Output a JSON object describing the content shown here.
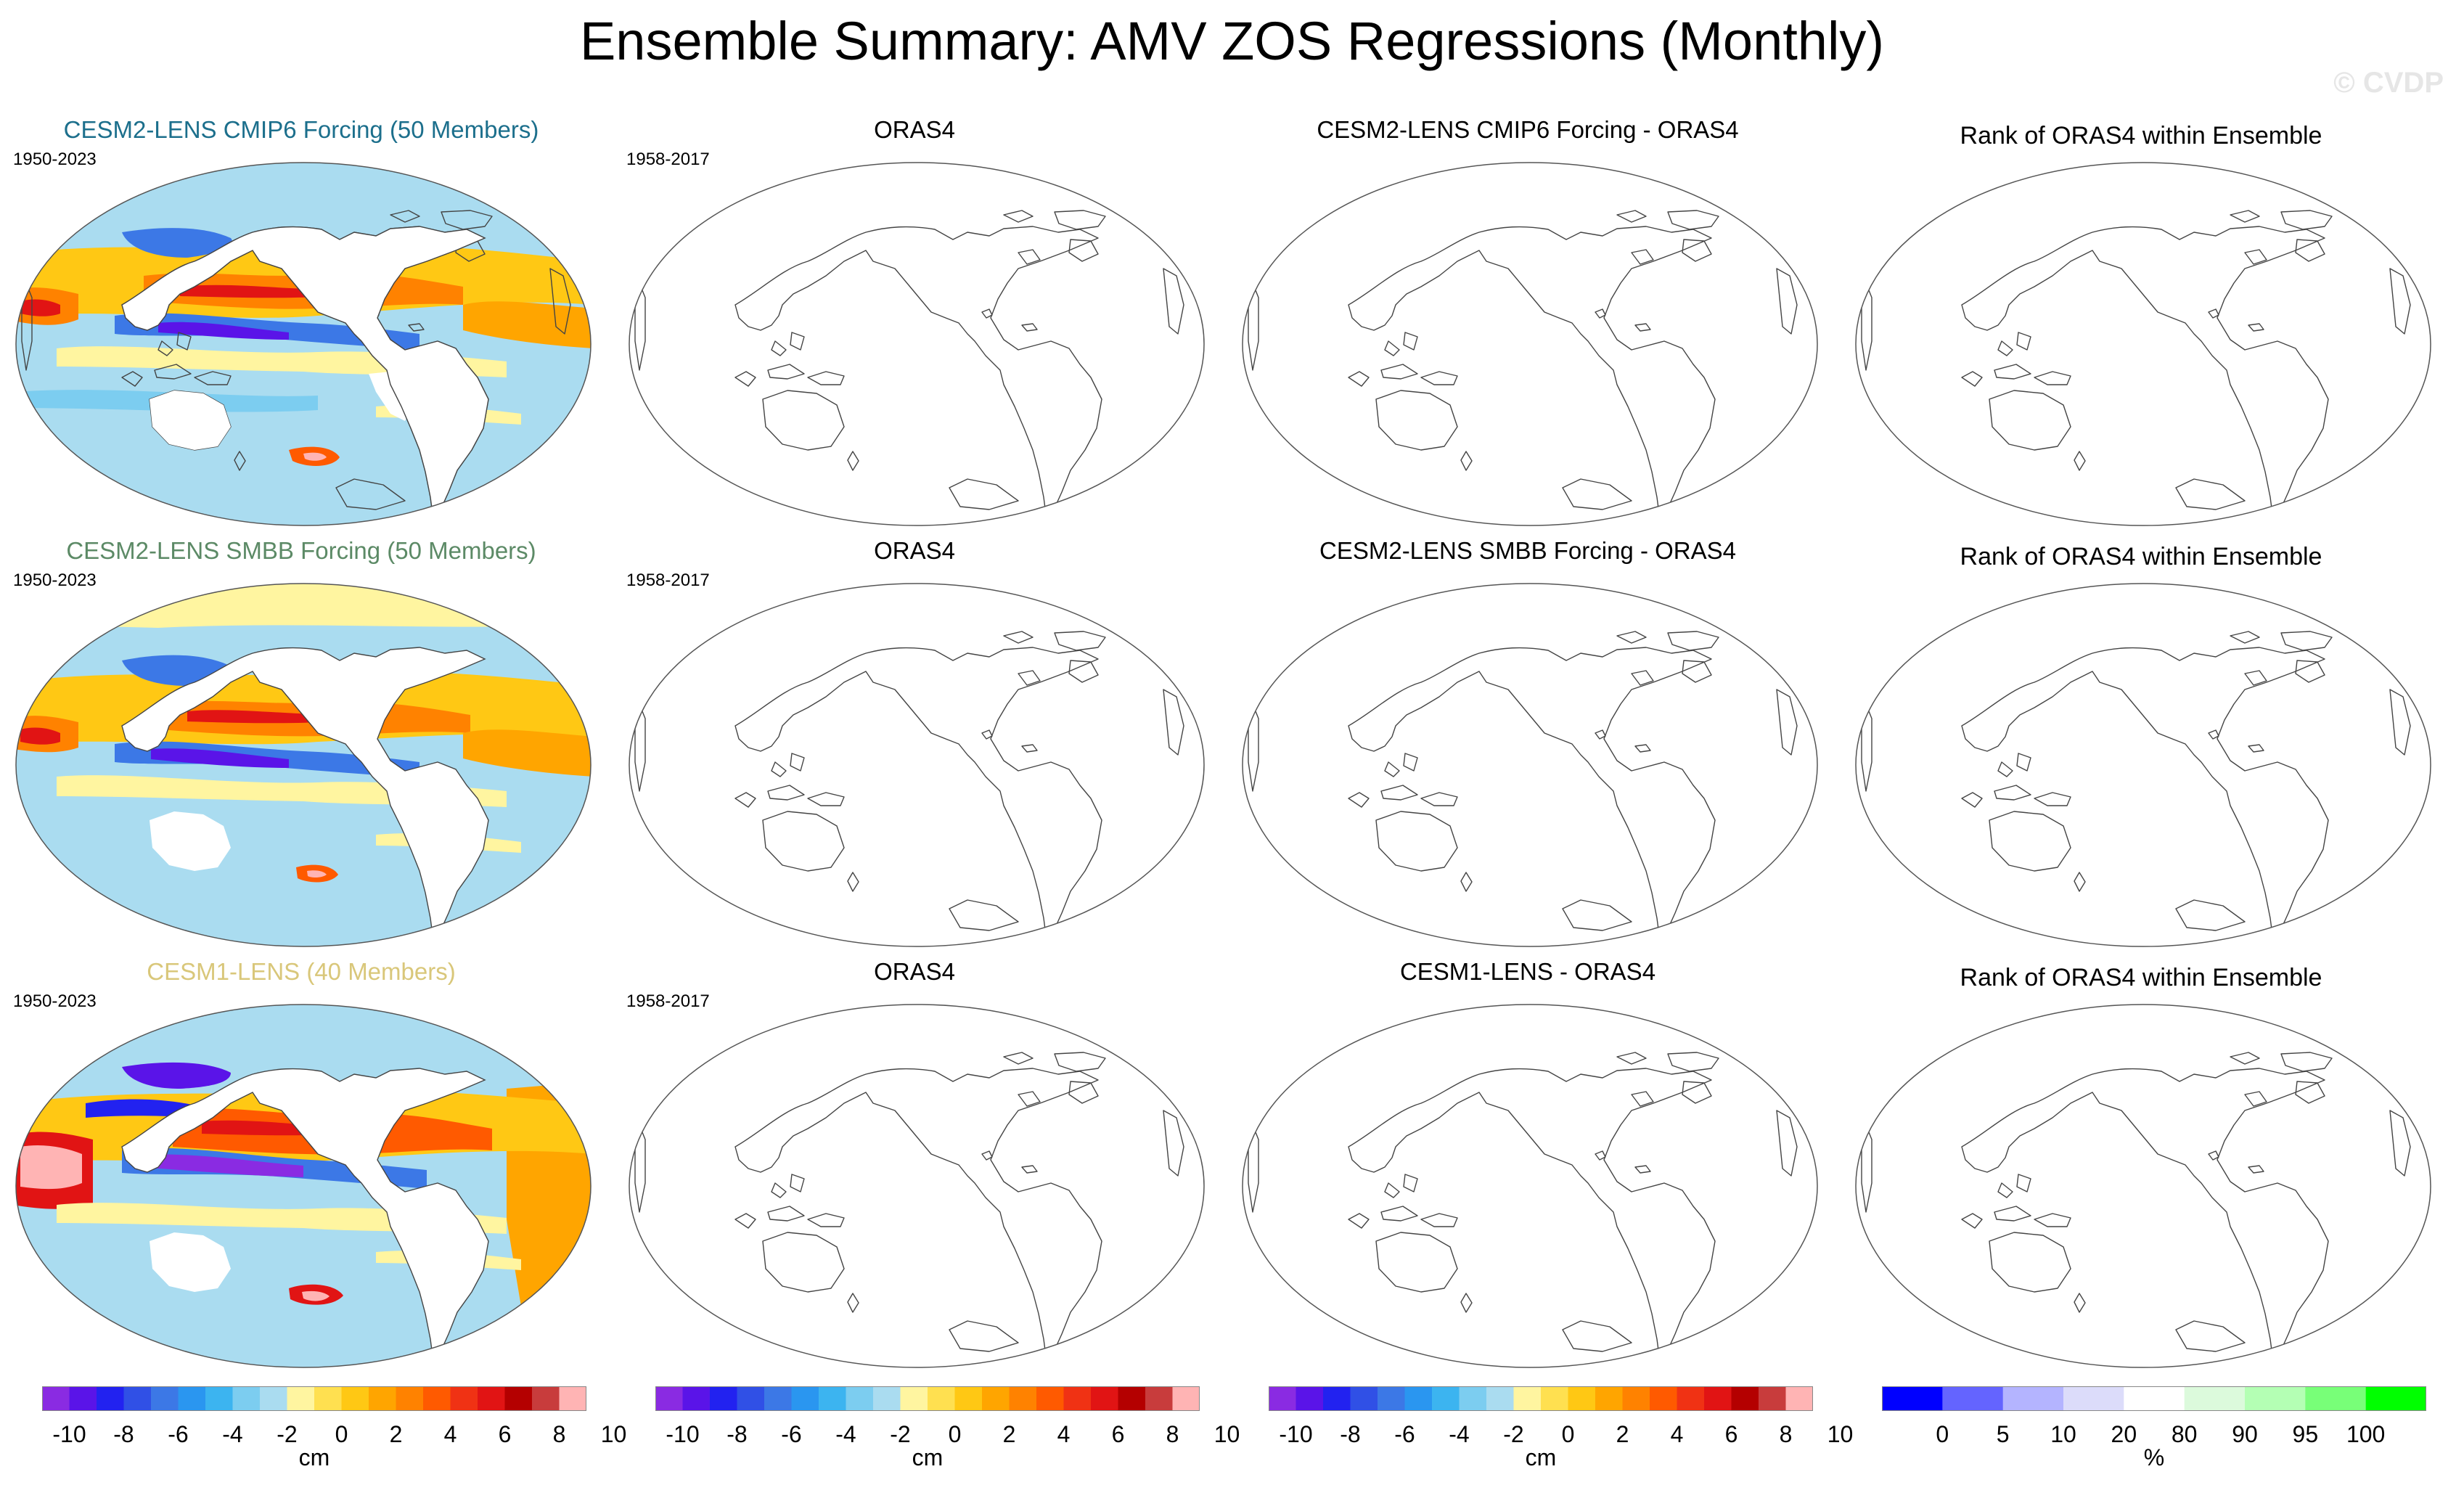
{
  "figure": {
    "title": "Ensemble Summary: AMV ZOS Regressions (Monthly)",
    "watermark": "© CVDP"
  },
  "rows": [
    {
      "ensemble_title": "CESM2-LENS CMIP6 Forcing (50 Members)",
      "ensemble_color": "#1c6f8c",
      "ensemble_period": "1950-2023",
      "obs_title": "ORAS4",
      "obs_period": "1958-2017",
      "diff_title": "CESM2-LENS CMIP6 Forcing - ORAS4",
      "rank_title": "Rank of ORAS4 within Ensemble"
    },
    {
      "ensemble_title": "CESM2-LENS SMBB Forcing (50 Members)",
      "ensemble_color": "#5c8a66",
      "ensemble_period": "1950-2023",
      "obs_title": "ORAS4",
      "obs_period": "1958-2017",
      "diff_title": "CESM2-LENS SMBB Forcing - ORAS4",
      "rank_title": "Rank of ORAS4 within Ensemble"
    },
    {
      "ensemble_title": "CESM1-LENS (40 Members)",
      "ensemble_color": "#d9c77a",
      "ensemble_period": "1950-2023",
      "obs_title": "ORAS4",
      "obs_period": "1958-2017",
      "diff_title": "CESM1-LENS - ORAS4",
      "rank_title": "Rank of ORAS4 within Ensemble"
    }
  ],
  "colorbars": {
    "zos": {
      "unit": "cm",
      "tick_labels": [
        "-10",
        "-8",
        "-6",
        "-4",
        "-2",
        "0",
        "2",
        "4",
        "6",
        "8",
        "10"
      ],
      "colors": [
        "#8a2be2",
        "#5a14e8",
        "#2222f0",
        "#3050e6",
        "#3c78e6",
        "#2a96f0",
        "#3cb4f0",
        "#7ccdf0",
        "#aadcf0",
        "#fff5a0",
        "#ffe050",
        "#ffc814",
        "#ffa500",
        "#ff8200",
        "#ff5a00",
        "#f03214",
        "#e11414",
        "#b40000",
        "#c83c3c",
        "#ffb4b4"
      ]
    },
    "rank": {
      "unit": "%",
      "tick_labels": [
        "0",
        "5",
        "10",
        "20",
        "80",
        "90",
        "95",
        "100"
      ],
      "colors": [
        "#0000ff",
        "#6464ff",
        "#b4b4ff",
        "#dcdcfa",
        "#ffffff",
        "#dcfadc",
        "#b4ffb4",
        "#78ff78",
        "#00ff00"
      ]
    }
  }
}
